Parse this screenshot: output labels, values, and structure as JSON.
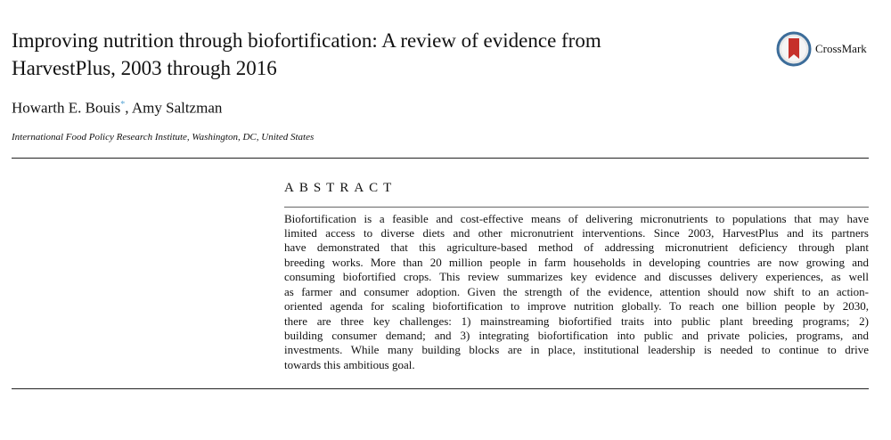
{
  "title_lines": [
    "Improving nutrition through biofortification: A review of evidence from",
    "HarvestPlus, 2003 through 2016"
  ],
  "authors": {
    "first": "Howarth E. Bouis",
    "marker": "*",
    "rest": ", Amy Saltzman"
  },
  "affiliation": "International Food Policy Research Institute, Washington, DC, United States",
  "crossmark": {
    "label": "CrossMark",
    "icon": "crossmark-icon",
    "colors": {
      "ring": "#3c6d9a",
      "ribbon": "#c6302b"
    }
  },
  "abstract": {
    "heading": "ABSTRACT",
    "lines": [
      "Biofortification is a feasible and cost-effective means of delivering micronutrients to populations that may have",
      "limited access to diverse diets and other micronutrient interventions. Since 2003, HarvestPlus and its partners",
      "have demonstrated that this agriculture-based method of addressing micronutrient deficiency through plant",
      "breeding works. More than 20 million people in farm households in developing countries are now growing and",
      "consuming biofortified crops. This review summarizes key evidence and discusses delivery experiences, as well",
      "as farmer and consumer adoption. Given the strength of the evidence, attention should now shift to an action-",
      "oriented agenda for scaling biofortification to improve nutrition globally. To reach one billion people by 2030,",
      "there are three key challenges: 1) mainstreaming biofortified traits into public plant breeding programs; 2)",
      "building consumer demand; and 3) integrating biofortification into public and private policies, programs, and",
      "investments. While many building blocks are in place, institutional leadership is needed to continue to drive",
      "towards this ambitious goal."
    ]
  }
}
